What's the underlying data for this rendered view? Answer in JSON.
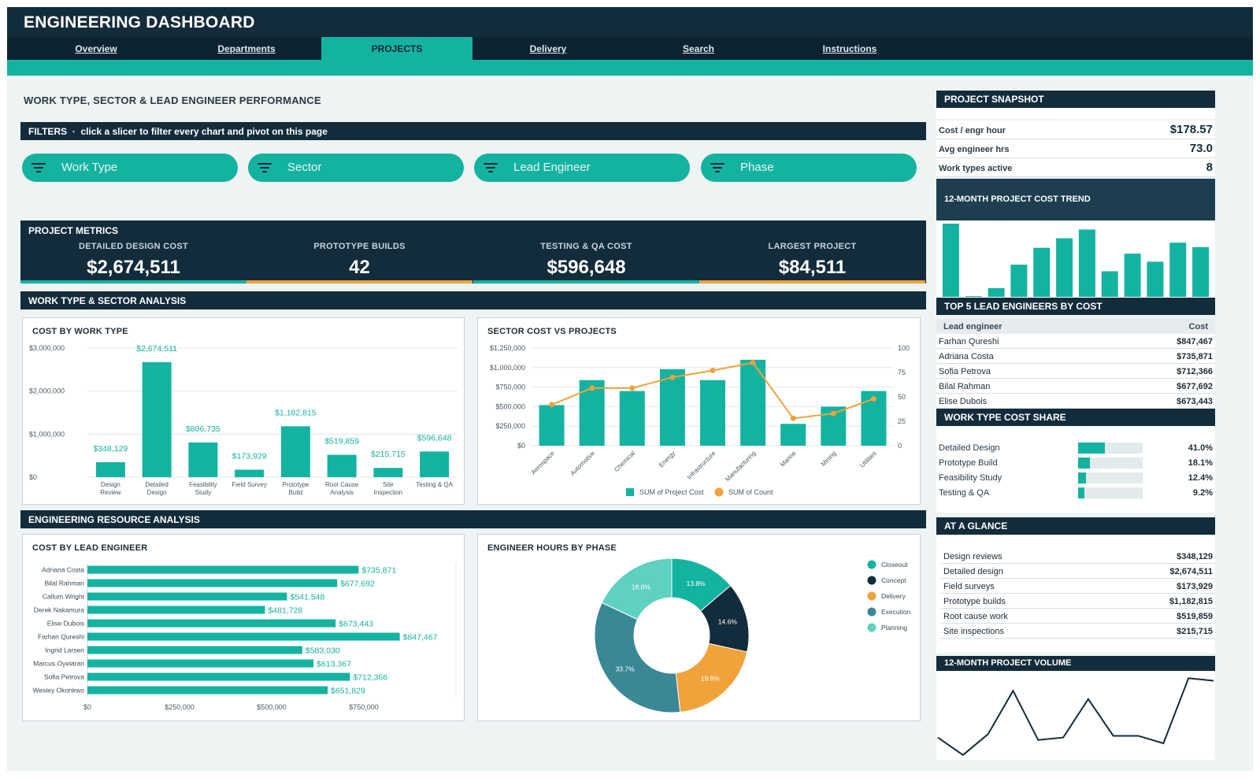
{
  "header": {
    "title": "ENGINEERING DASHBOARD"
  },
  "nav": {
    "tabs": [
      {
        "label": "Overview",
        "active": false
      },
      {
        "label": "Departments",
        "active": false
      },
      {
        "label": "PROJECTS",
        "active": true
      },
      {
        "label": "Delivery",
        "active": false
      },
      {
        "label": "Search",
        "active": false
      },
      {
        "label": "Instructions",
        "active": false
      }
    ]
  },
  "page": {
    "title": "WORK TYPE, SECTOR & LEAD ENGINEER PERFORMANCE"
  },
  "filters": {
    "heading": "FILTERS",
    "hint": "click a slicer to filter every chart and pivot on this page",
    "slicers": [
      "Work Type",
      "Sector",
      "Lead Engineer",
      "Phase"
    ]
  },
  "metrics": {
    "title": "PROJECT METRICS",
    "kpis": [
      {
        "label": "DETAILED DESIGN COST",
        "value": "$2,674,511",
        "color": "#14b3a1"
      },
      {
        "label": "PROTOTYPE BUILDS",
        "value": "42",
        "color": "#f0a23b"
      },
      {
        "label": "TESTING & QA COST",
        "value": "$596,648",
        "color": "#14b3a1"
      },
      {
        "label": "LARGEST PROJECT",
        "value": "$84,511",
        "color": "#f0a23b"
      }
    ]
  },
  "sections": {
    "work_sector": "WORK TYPE & SECTOR ANALYSIS",
    "resource": "ENGINEERING RESOURCE ANALYSIS"
  },
  "colors": {
    "teal": "#14b3a1",
    "navy": "#132c3b",
    "orange": "#f0a23b"
  },
  "chart_data": [
    {
      "id": "cost_by_work_type",
      "type": "bar",
      "title": "COST BY WORK TYPE",
      "categories": [
        "Design\nReview",
        "Detailed\nDesign",
        "Feasibility\nStudy",
        "Field Survey",
        "Prototype\nBuild",
        "Root Cause\nAnalysis",
        "Site\nInspection",
        "Testing & QA"
      ],
      "values": [
        348129,
        2674511,
        806735,
        173929,
        1182815,
        519859,
        215715,
        596648
      ],
      "data_labels": [
        "$348,129",
        "$2,674,511",
        "$806,735",
        "$173,929",
        "$1,182,815",
        "$519,859",
        "$215,715",
        "$596,648"
      ],
      "yticks": [
        "$0",
        "$1,000,000",
        "$2,000,000",
        "$3,000,000"
      ],
      "ylim": [
        0,
        3000000
      ],
      "grid": true
    },
    {
      "id": "sector_cost_vs_projects",
      "type": "bar",
      "title": "SECTOR COST VS PROJECTS",
      "categories": [
        "Aerospace",
        "Automotive",
        "Chemical",
        "Energy",
        "Infrastructure",
        "Manufacturing",
        "Marine",
        "Mining",
        "Utilities"
      ],
      "series": [
        {
          "name": "SUM of Project Cost",
          "type": "bar",
          "axis": "left",
          "values": [
            520000,
            840000,
            700000,
            980000,
            840000,
            1100000,
            280000,
            500000,
            700000
          ]
        },
        {
          "name": "SUM of Count",
          "type": "line",
          "axis": "right",
          "values": [
            42,
            59,
            59,
            70,
            77,
            85,
            28,
            33,
            48
          ]
        }
      ],
      "yticks_left": [
        "$0",
        "$250,000",
        "$500,000",
        "$750,000",
        "$1,000,000",
        "$1,250,000"
      ],
      "yticks_right": [
        "0",
        "25",
        "50",
        "75",
        "100"
      ],
      "ylim": [
        0,
        1250000
      ],
      "ylim_right": [
        0,
        100
      ],
      "legend": "bottom"
    },
    {
      "id": "cost_by_lead_engineer",
      "type": "bar",
      "orientation": "horizontal",
      "title": "COST BY LEAD ENGINEER",
      "categories": [
        "Adriana Costa",
        "Bilal Rahman",
        "Callum Wright",
        "Derek Nakamura",
        "Elise Dubois",
        "Farhan Qureshi",
        "Ingrid Larsen",
        "Marcus Oyelaran",
        "Sofia Petrova",
        "Wesley Okonkwo"
      ],
      "values": [
        735871,
        677692,
        541548,
        481728,
        673443,
        847467,
        583030,
        613367,
        712366,
        651829
      ],
      "data_labels": [
        "$735,871",
        "$677,692",
        "$541,548",
        "$481,728",
        "$673,443",
        "$847,467",
        "$583,030",
        "$613,367",
        "$712,366",
        "$651,829"
      ],
      "xticks": [
        "$0",
        "$250,000",
        "$500,000",
        "$750,000"
      ],
      "xlim": [
        0,
        1000000
      ]
    },
    {
      "id": "engineer_hours_by_phase",
      "type": "pie",
      "donut": true,
      "title": "ENGINEER HOURS BY PHASE",
      "slices": [
        {
          "name": "Closeout",
          "value": 13.8,
          "label": "13.8%",
          "color": "#14b3a1"
        },
        {
          "name": "Concept",
          "value": 14.6,
          "label": "14.6%",
          "color": "#132c3b"
        },
        {
          "name": "Delivery",
          "value": 19.8,
          "label": "19.8%",
          "color": "#f0a23b"
        },
        {
          "name": "Execution",
          "value": 33.7,
          "label": "33.7%",
          "color": "#3a8796"
        },
        {
          "name": "Planning",
          "value": 18.0,
          "label": "18.0%",
          "color": "#5fd1c1"
        }
      ],
      "legend": "right"
    },
    {
      "id": "project_cost_trend",
      "type": "bar",
      "title": "12-MONTH PROJECT COST TREND",
      "values": [
        100,
        1,
        12,
        44,
        67,
        80,
        92,
        35,
        59,
        48,
        74,
        68
      ],
      "grid": false
    },
    {
      "id": "project_volume",
      "type": "line",
      "title": "12-MONTH PROJECT VOLUME",
      "values": [
        24,
        3,
        28,
        80,
        21,
        24,
        70,
        26,
        26,
        17,
        95,
        92
      ],
      "grid": false
    }
  ],
  "snapshot": {
    "title": "PROJECT SNAPSHOT",
    "rows": [
      {
        "label": "Cost / engr hour",
        "value": "$178.57"
      },
      {
        "label": "Avg engineer hrs",
        "value": "73.0"
      },
      {
        "label": "Work types active",
        "value": "8"
      }
    ]
  },
  "top_engineers": {
    "title": "TOP 5 LEAD ENGINEERS BY COST",
    "col1": "Lead engineer",
    "col2": "Cost",
    "rows": [
      {
        "name": "Farhan Qureshi",
        "cost": "$847,467"
      },
      {
        "name": "Adriana Costa",
        "cost": "$735,871"
      },
      {
        "name": "Sofia Petrova",
        "cost": "$712,366"
      },
      {
        "name": "Bilal Rahman",
        "cost": "$677,692"
      },
      {
        "name": "Elise Dubois",
        "cost": "$673,443"
      }
    ]
  },
  "cost_share": {
    "title": "WORK TYPE COST SHARE",
    "rows": [
      {
        "label": "Detailed Design",
        "pct": "41.0%",
        "fraction": 0.41
      },
      {
        "label": "Prototype Build",
        "pct": "18.1%",
        "fraction": 0.181
      },
      {
        "label": "Feasibility Study",
        "pct": "12.4%",
        "fraction": 0.124
      },
      {
        "label": "Testing & QA",
        "pct": "9.2%",
        "fraction": 0.092
      }
    ]
  },
  "at_a_glance": {
    "title": "AT A GLANCE",
    "rows": [
      {
        "label": "Design reviews",
        "value": "$348,129"
      },
      {
        "label": "Detailed design",
        "value": "$2,674,511"
      },
      {
        "label": "Field surveys",
        "value": "$173,929"
      },
      {
        "label": "Prototype builds",
        "value": "$1,182,815"
      },
      {
        "label": "Root cause work",
        "value": "$519,859"
      },
      {
        "label": "Site inspections",
        "value": "$215,715"
      }
    ]
  }
}
